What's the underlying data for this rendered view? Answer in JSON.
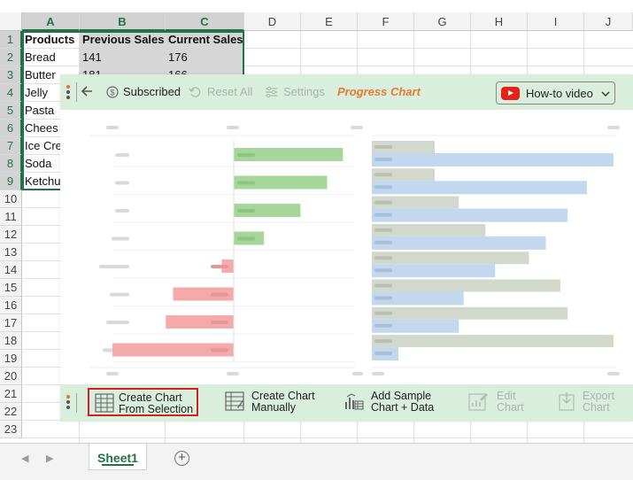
{
  "spreadsheet": {
    "columns": [
      "A",
      "B",
      "C",
      "D",
      "E",
      "F",
      "G",
      "H",
      "I",
      "J"
    ],
    "rows": [
      "1",
      "2",
      "3",
      "4",
      "5",
      "6",
      "7",
      "8",
      "9",
      "10",
      "11",
      "12",
      "13",
      "14",
      "15",
      "16",
      "17",
      "18",
      "19",
      "20",
      "21",
      "22",
      "23"
    ],
    "header": [
      "Products",
      "Previous Sales",
      "Current Sales"
    ],
    "data": [
      [
        "Bread",
        "141",
        "176"
      ],
      [
        "Butter",
        "181",
        "166"
      ],
      [
        "Jelly",
        "",
        ""
      ],
      [
        "Pasta",
        "",
        ""
      ],
      [
        "Chees",
        "",
        ""
      ],
      [
        "Ice Cre",
        "",
        ""
      ],
      [
        "Soda",
        "",
        ""
      ],
      [
        "Ketchu",
        "",
        ""
      ]
    ],
    "sheet_tab": "Sheet1",
    "accent": "#217346"
  },
  "addin": {
    "toolbar": {
      "subscribed": "Subscribed",
      "reset_all": "Reset All",
      "settings": "Settings",
      "title": "Progress Chart",
      "howto": "How-to video"
    },
    "bottom": {
      "create_from_selection": [
        "Create Chart",
        "From Selection"
      ],
      "create_manually": [
        "Create Chart",
        "Manually"
      ],
      "add_sample": [
        "Add Sample",
        "Chart + Data"
      ],
      "edit_chart": [
        "Edit",
        "Chart"
      ],
      "export_chart": [
        "Export",
        "Chart"
      ]
    },
    "colors": {
      "bar_bg": "#d9eedd",
      "title": "#e87a2d",
      "positive": "#a6d69a",
      "negative": "#f4aaaa",
      "previous": "#d3d8cc",
      "current": "#c3d8ee"
    }
  },
  "chart_data": [
    {
      "type": "bar",
      "title": "",
      "placeholder": true,
      "values": [
        0.9,
        0.77,
        0.55,
        0.25,
        -0.1,
        -0.5,
        -0.56,
        -1.0
      ],
      "colors": {
        "positive": "#a6d69a",
        "negative": "#f4aaaa"
      }
    },
    {
      "type": "bar",
      "title": "",
      "placeholder": true,
      "series": [
        {
          "values": [
            0.26,
            0.26,
            0.36,
            0.47,
            0.65,
            0.78,
            0.81,
            1.0
          ]
        },
        {
          "values": [
            1.0,
            0.89,
            0.81,
            0.72,
            0.51,
            0.38,
            0.36,
            0.11
          ]
        }
      ],
      "colors": [
        "#d3d8cc",
        "#c3d8ee"
      ]
    }
  ]
}
